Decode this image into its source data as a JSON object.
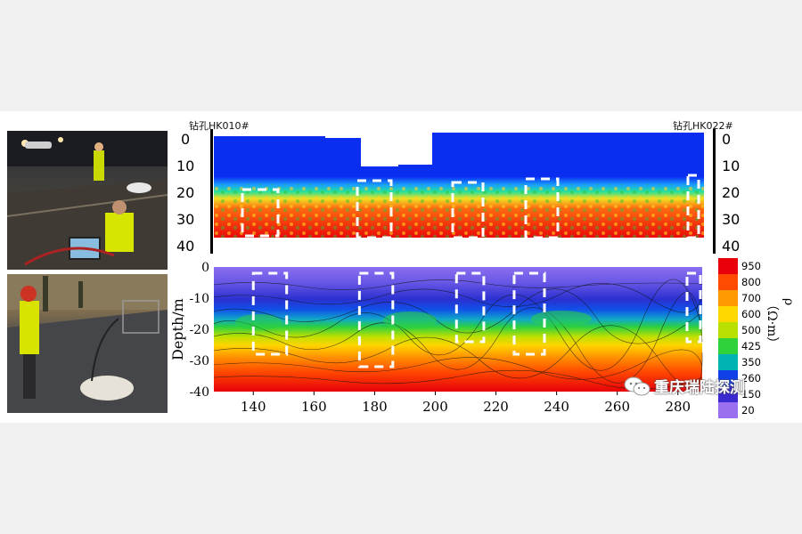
{
  "labels": {
    "borehole_left": "钻孔HK010#",
    "borehole_right": "钻孔HK022#",
    "watermark": "重庆瑞陆探测"
  },
  "top_panel": {
    "depth_ticks": [
      "0",
      "10",
      "20",
      "30",
      "40"
    ]
  },
  "chart_data": {
    "type": "heatmap",
    "title": "",
    "xlabel": "",
    "ylabel": "Depth/m",
    "x_ticks": [
      "140",
      "160",
      "180",
      "200",
      "220",
      "240",
      "260",
      "280"
    ],
    "y_ticks": [
      "0",
      "-10",
      "-20",
      "-30",
      "-40"
    ],
    "xlim": [
      127,
      288
    ],
    "ylim": [
      -40,
      0
    ],
    "colorbar": {
      "label": "ρ（Ω·m）",
      "ticks": [
        "950",
        "800",
        "700",
        "600",
        "500",
        "425",
        "350",
        "260",
        "150",
        "20"
      ],
      "colors": [
        "#e8000a",
        "#ff4a00",
        "#ff9a00",
        "#ffd800",
        "#b8e000",
        "#2fd23a",
        "#00b4b4",
        "#1040e8",
        "#3a2ad0",
        "#9a70f0"
      ]
    },
    "highlight_boxes_x": [
      [
        140,
        151
      ],
      [
        175,
        186
      ],
      [
        207,
        216
      ],
      [
        226,
        236
      ],
      [
        283,
        288
      ]
    ],
    "grid": false
  },
  "colors": {
    "box_dash": "#ffffff",
    "background": "#f0f0f0",
    "panel": "#ffffff"
  }
}
